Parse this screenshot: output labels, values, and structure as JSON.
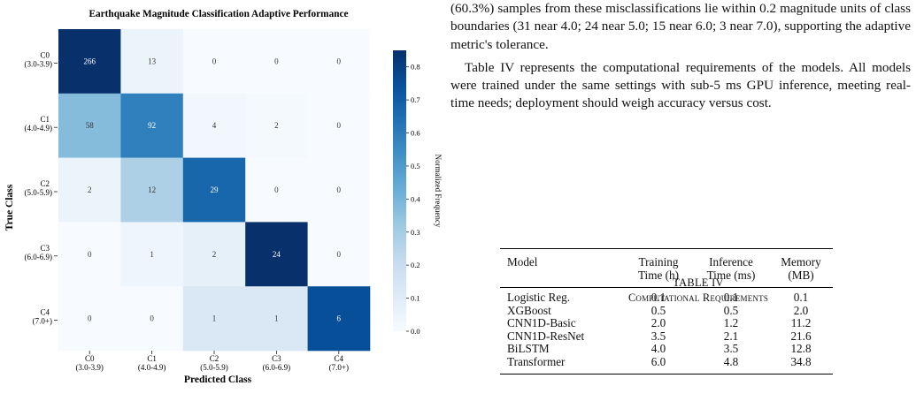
{
  "figure": {
    "title": "Earthquake Magnitude Classification Adaptive Performance",
    "xlabel": "Predicted Class",
    "ylabel": "True Class",
    "colorbar_label": "Normalized Frequency",
    "colorbar_ticks": [
      "0.8",
      "0.7",
      "0.6",
      "0.5",
      "0.4",
      "0.3",
      "0.2",
      "0.1",
      "0.0"
    ],
    "classes": [
      {
        "name": "C0",
        "range": "(3.0-3.9)"
      },
      {
        "name": "C1",
        "range": "(4.0-4.9)"
      },
      {
        "name": "C2",
        "range": "(5.0-5.9)"
      },
      {
        "name": "C3",
        "range": "(6.0-6.9)"
      },
      {
        "name": "C4",
        "range": "(7.0+)"
      }
    ]
  },
  "chart_data": {
    "type": "heatmap",
    "title": "Earthquake Magnitude Classification Adaptive Performance",
    "xlabel": "Predicted Class",
    "ylabel": "True Class",
    "x_categories": [
      "C0 (3.0-3.9)",
      "C1 (4.0-4.9)",
      "C2 (5.0-5.9)",
      "C3 (6.0-6.9)",
      "C4 (7.0+)"
    ],
    "y_categories": [
      "C0 (3.0-3.9)",
      "C1 (4.0-4.9)",
      "C2 (5.0-5.9)",
      "C3 (6.0-6.9)",
      "C4 (7.0+)"
    ],
    "values": [
      [
        266,
        13,
        0,
        0,
        0
      ],
      [
        58,
        92,
        4,
        2,
        0
      ],
      [
        2,
        12,
        29,
        0,
        0
      ],
      [
        0,
        1,
        2,
        24,
        0
      ],
      [
        0,
        0,
        1,
        1,
        6
      ]
    ],
    "colorbar": {
      "label": "Normalized Frequency",
      "range": [
        0,
        0.85
      ],
      "colormap": "Blues"
    }
  },
  "text": {
    "para1": "(60.3%) samples from these misclassifications lie within 0.2 magnitude units of class boundaries (31 near 4.0; 24 near 5.0; 15 near 6.0; 3 near 7.0), supporting the adaptive metric's tolerance.",
    "para2": "Table IV represents the computational requirements of the models. All models were trained under the same settings with sub-5 ms GPU inference, meeting real-time needs; deployment should weigh accuracy versus cost."
  },
  "table": {
    "label": "TABLE IV",
    "caption": "Computational Requirements",
    "headers": [
      {
        "line1": "Model",
        "line2": ""
      },
      {
        "line1": "Training",
        "line2": "Time (h)"
      },
      {
        "line1": "Inference",
        "line2": "Time (ms)"
      },
      {
        "line1": "Memory",
        "line2": "(MB)"
      }
    ],
    "rows": [
      [
        "Logistic Reg.",
        "0.1",
        "0.1",
        "0.1"
      ],
      [
        "XGBoost",
        "0.5",
        "0.5",
        "2.0"
      ],
      [
        "CNN1D-Basic",
        "2.0",
        "1.2",
        "11.2"
      ],
      [
        "CNN1D-ResNet",
        "3.5",
        "2.1",
        "21.6"
      ],
      [
        "BiLSTM",
        "4.0",
        "3.5",
        "12.8"
      ],
      [
        "Transformer",
        "6.0",
        "4.8",
        "34.8"
      ]
    ]
  }
}
